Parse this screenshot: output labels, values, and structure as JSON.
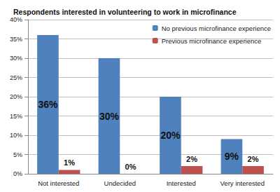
{
  "chart_data": {
    "type": "bar",
    "title": "Respondents interested in volunteering to work in microfinance",
    "categories": [
      "Not interested",
      "Undecided",
      "Interested",
      "Very interested"
    ],
    "series": [
      {
        "name": "No previous microfinance experience",
        "color": "#4f81bd",
        "values": [
          36,
          30,
          20,
          9
        ],
        "value_labels": [
          "36%",
          "30%",
          "20%",
          "9%"
        ]
      },
      {
        "name": "Previous microfinance experience",
        "color": "#c0504d",
        "values": [
          1,
          0,
          2,
          2
        ],
        "value_labels": [
          "1%",
          "0%",
          "2%",
          "2%"
        ]
      }
    ],
    "ylim": [
      0,
      40
    ],
    "yticks": [
      {
        "value": 0,
        "label": "0%"
      },
      {
        "value": 5,
        "label": "5%"
      },
      {
        "value": 10,
        "label": "10%"
      },
      {
        "value": 15,
        "label": "15%"
      },
      {
        "value": 20,
        "label": "20%"
      },
      {
        "value": 25,
        "label": "25%"
      },
      {
        "value": 30,
        "label": "30%"
      },
      {
        "value": 35,
        "label": "35%"
      },
      {
        "value": 40,
        "label": "40%"
      }
    ],
    "grid": true,
    "legend": "top-right",
    "data_labels": true
  }
}
